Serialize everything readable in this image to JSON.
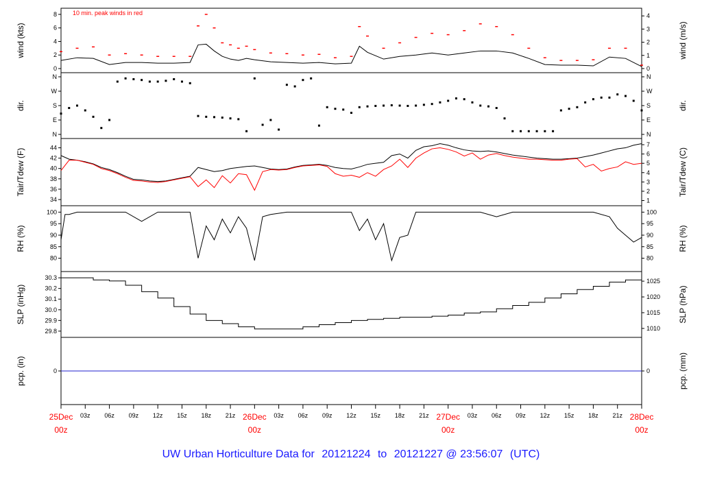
{
  "footer": {
    "prefix": "UW Urban Horticulture Data for",
    "start": "20121224",
    "mid": "to",
    "end": "20121227 @ 23:56:07",
    "tz": "(UTC)"
  },
  "chart_data": {
    "type": "line",
    "time_axis": {
      "unit": "hours since 25Dec 00z",
      "range": [
        0,
        72
      ],
      "major_labels": [
        {
          "t": 0,
          "l1": "25Dec",
          "l2": "00z"
        },
        {
          "t": 24,
          "l1": "26Dec",
          "l2": "00z"
        },
        {
          "t": 48,
          "l1": "27Dec",
          "l2": "00z"
        },
        {
          "t": 72,
          "l1": "28Dec",
          "l2": "00z"
        }
      ],
      "minor_labels": [
        "03z",
        "06z",
        "09z",
        "12z",
        "15z",
        "18z",
        "21z"
      ]
    },
    "panels": [
      {
        "id": "wind",
        "left_label": "wind (kts)",
        "right_label": "wind (m/s)",
        "annotation": "10 min. peak winds in red",
        "left_ticks": [
          "0",
          "2",
          "4",
          "6",
          "8"
        ],
        "left_range": [
          0,
          8.3
        ],
        "right_ticks": [
          "0",
          "1",
          "2",
          "3",
          "4"
        ],
        "series": [
          {
            "role": "mean wind",
            "color": "#000000",
            "x": [
              0,
              2,
              4,
              6,
              8,
              10,
              12,
              14,
              16,
              17,
              18,
              19,
              20,
              21,
              22,
              23,
              24,
              26,
              28,
              30,
              32,
              34,
              36,
              37,
              38,
              40,
              42,
              44,
              46,
              48,
              50,
              52,
              54,
              56,
              58,
              60,
              62,
              64,
              66,
              68,
              70,
              72
            ],
            "y": [
              1.2,
              1.6,
              1.5,
              0.6,
              0.9,
              0.9,
              0.8,
              0.8,
              0.9,
              3.5,
              3.6,
              2.6,
              1.8,
              1.4,
              1.2,
              1.5,
              1.3,
              1.0,
              0.9,
              0.8,
              0.9,
              0.7,
              0.8,
              3.3,
              2.4,
              1.4,
              1.8,
              2.0,
              2.3,
              2.0,
              2.3,
              2.6,
              2.6,
              2.3,
              1.5,
              0.6,
              0.5,
              0.5,
              0.4,
              1.7,
              1.5,
              0.3
            ]
          },
          {
            "role": "10 min peak",
            "color": "#ff0000",
            "x": [
              0,
              2,
              4,
              6,
              8,
              10,
              12,
              14,
              16,
              17,
              18,
              19,
              20,
              21,
              22,
              23,
              24,
              26,
              28,
              30,
              32,
              34,
              36,
              37,
              38,
              40,
              42,
              44,
              46,
              48,
              50,
              52,
              54,
              56,
              58,
              60,
              62,
              64,
              66,
              68,
              70,
              72
            ],
            "y": [
              2.5,
              3.0,
              3.2,
              2.0,
              2.2,
              2.0,
              1.8,
              1.8,
              1.8,
              6.3,
              8.0,
              6.0,
              3.8,
              3.5,
              3.0,
              3.3,
              2.8,
              2.3,
              2.2,
              2.0,
              2.1,
              1.6,
              1.8,
              6.2,
              4.8,
              3.0,
              3.8,
              4.6,
              5.2,
              5.0,
              5.6,
              6.6,
              6.2,
              5.0,
              3.0,
              1.6,
              1.2,
              1.2,
              1.3,
              3.0,
              3.0,
              0.5
            ]
          }
        ]
      },
      {
        "id": "dir",
        "left_label": "dir.",
        "right_label": "dir.",
        "left_ticks": [
          "N",
          "E",
          "S",
          "W",
          "N"
        ],
        "left_range": [
          0,
          360
        ],
        "right_ticks": [
          "N",
          "E",
          "S",
          "W",
          "N"
        ],
        "series": [
          {
            "role": "direction (deg)",
            "color": "#000000",
            "x": [
              0,
              1,
              2,
              3,
              4,
              5,
              6,
              7,
              8,
              9,
              10,
              11,
              12,
              13,
              14,
              15,
              16,
              17,
              18,
              19,
              20,
              21,
              22,
              23,
              24,
              25,
              26,
              27,
              28,
              29,
              30,
              31,
              32,
              33,
              34,
              35,
              36,
              37,
              38,
              39,
              40,
              41,
              42,
              43,
              44,
              45,
              46,
              47,
              48,
              49,
              50,
              51,
              52,
              53,
              54,
              55,
              56,
              57,
              58,
              59,
              60,
              61,
              62,
              63,
              64,
              65,
              66,
              67,
              68,
              69,
              70,
              71,
              72
            ],
            "y": [
              130,
              165,
              180,
              150,
              110,
              40,
              90,
              330,
              350,
              345,
              340,
              330,
              330,
              335,
              345,
              330,
              320,
              115,
              110,
              108,
              105,
              100,
              95,
              20,
              350,
              60,
              90,
              30,
              310,
              300,
              340,
              350,
              55,
              170,
              160,
              155,
              135,
              170,
              175,
              178,
              180,
              182,
              180,
              178,
              180,
              185,
              190,
              200,
              210,
              225,
              220,
              200,
              180,
              175,
              165,
              100,
              20,
              20,
              20,
              20,
              20,
              20,
              150,
              160,
              170,
              200,
              220,
              230,
              230,
              250,
              240,
              210,
              150
            ]
          }
        ]
      },
      {
        "id": "temp",
        "left_label": "Tair/Tdew (F)",
        "right_label": "Tair/Tdew (C)",
        "left_ticks": [
          "34",
          "36",
          "38",
          "40",
          "42",
          "44"
        ],
        "left_range": [
          33.6,
          45.0
        ],
        "right_ticks": [
          "1",
          "2",
          "3",
          "4",
          "5",
          "6",
          "7"
        ],
        "series": [
          {
            "role": "Tair",
            "color": "#000000",
            "x": [
              0,
              1,
              2,
              3,
              4,
              5,
              6,
              7,
              8,
              9,
              10,
              11,
              12,
              13,
              14,
              15,
              16,
              17,
              18,
              19,
              20,
              21,
              22,
              23,
              24,
              25,
              26,
              27,
              28,
              29,
              30,
              31,
              32,
              33,
              34,
              35,
              36,
              37,
              38,
              39,
              40,
              41,
              42,
              43,
              44,
              45,
              46,
              47,
              48,
              49,
              50,
              51,
              52,
              53,
              54,
              55,
              56,
              57,
              58,
              59,
              60,
              61,
              62,
              63,
              64,
              65,
              66,
              67,
              68,
              69,
              70,
              71,
              72
            ],
            "y": [
              42.5,
              41.8,
              41.6,
              41.3,
              40.9,
              40.2,
              39.8,
              39.2,
              38.5,
              37.9,
              37.8,
              37.6,
              37.5,
              37.6,
              37.9,
              38.2,
              38.5,
              40.2,
              39.8,
              39.4,
              39.6,
              40.0,
              40.2,
              40.4,
              40.5,
              40.2,
              39.9,
              39.8,
              39.9,
              40.3,
              40.6,
              40.7,
              40.8,
              40.6,
              40.2,
              40.0,
              39.9,
              40.3,
              40.8,
              41.0,
              41.2,
              42.5,
              42.8,
              42.0,
              43.5,
              44.2,
              44.4,
              44.8,
              44.5,
              44.0,
              43.6,
              43.4,
              43.3,
              43.4,
              43.2,
              42.9,
              42.6,
              42.4,
              42.2,
              42.0,
              41.9,
              41.8,
              41.8,
              41.9,
              42.0,
              42.3,
              42.6,
              43.0,
              43.4,
              43.8,
              44.0,
              44.5,
              44.8
            ]
          },
          {
            "role": "Tdew",
            "color": "#ff0000",
            "x": [
              0,
              1,
              2,
              3,
              4,
              5,
              6,
              7,
              8,
              9,
              10,
              11,
              12,
              13,
              14,
              15,
              16,
              17,
              18,
              19,
              20,
              21,
              22,
              23,
              24,
              25,
              26,
              27,
              28,
              29,
              30,
              31,
              32,
              33,
              34,
              35,
              36,
              37,
              38,
              39,
              40,
              41,
              42,
              43,
              44,
              45,
              46,
              47,
              48,
              49,
              50,
              51,
              52,
              53,
              54,
              55,
              56,
              57,
              58,
              59,
              60,
              61,
              62,
              63,
              64,
              65,
              66,
              67,
              68,
              69,
              70,
              71,
              72
            ],
            "y": [
              39.6,
              41.6,
              41.6,
              41.2,
              40.8,
              40.0,
              39.6,
              39.0,
              38.3,
              37.7,
              37.6,
              37.4,
              37.3,
              37.5,
              37.8,
              38.1,
              38.4,
              36.5,
              37.8,
              36.3,
              38.6,
              37.2,
              39.0,
              38.8,
              35.8,
              39.4,
              39.8,
              39.7,
              39.8,
              40.2,
              40.5,
              40.6,
              40.7,
              40.4,
              39.0,
              38.5,
              38.7,
              38.3,
              39.2,
              38.5,
              39.8,
              40.5,
              41.8,
              40.2,
              42.0,
              43.0,
              43.8,
              44.0,
              43.7,
              43.2,
              42.4,
              43.0,
              41.8,
              42.6,
              42.9,
              42.5,
              42.2,
              42.0,
              41.8,
              41.8,
              41.7,
              41.6,
              41.6,
              41.8,
              41.9,
              40.3,
              40.8,
              39.5,
              40.0,
              40.3,
              41.3,
              40.8,
              41.0
            ]
          }
        ]
      },
      {
        "id": "rh",
        "left_label": "RH (%)",
        "right_label": "RH (%)",
        "left_ticks": [
          "80",
          "85",
          "90",
          "95",
          "100"
        ],
        "left_range": [
          76,
          101
        ],
        "right_ticks": [
          "80",
          "85",
          "90",
          "95",
          "100"
        ],
        "series": [
          {
            "role": "RH",
            "color": "#000000",
            "x": [
              0,
              0.5,
              1,
              2,
              4,
              6,
              8,
              10,
              12,
              14,
              16,
              17,
              18,
              19,
              20,
              21,
              22,
              23,
              24,
              25,
              26,
              28,
              30,
              32,
              34,
              36,
              37,
              38,
              39,
              40,
              41,
              42,
              43,
              44,
              46,
              48,
              50,
              52,
              54,
              56,
              58,
              60,
              62,
              64,
              66,
              68,
              69,
              70,
              71,
              72
            ],
            "y": [
              88,
              99,
              99,
              100,
              100,
              100,
              100,
              96,
              100,
              100,
              100,
              80,
              94,
              88,
              97,
              91,
              98,
              93,
              79,
              98,
              99,
              100,
              100,
              100,
              100,
              100,
              92,
              97,
              88,
              95,
              79,
              89,
              90,
              100,
              100,
              100,
              100,
              100,
              98,
              100,
              100,
              100,
              100,
              100,
              100,
              98,
              93,
              90,
              87,
              89
            ]
          }
        ]
      },
      {
        "id": "slp",
        "left_label": "SLP (inHg)",
        "right_label": "SLP (hPa)",
        "left_ticks": [
          "29.8",
          "29.9",
          "30.0",
          "30.1",
          "30.2",
          "30.3"
        ],
        "left_range": [
          29.78,
          30.32
        ],
        "right_ticks": [
          "1010",
          "1015",
          "1020",
          "1025"
        ],
        "series": [
          {
            "role": "SLP",
            "color": "#000000",
            "x": [
              0,
              2,
              4,
              6,
              8,
              10,
              12,
              14,
              16,
              18,
              20,
              22,
              24,
              26,
              28,
              30,
              32,
              34,
              36,
              38,
              40,
              42,
              44,
              46,
              48,
              50,
              52,
              54,
              56,
              58,
              60,
              62,
              64,
              66,
              68,
              70,
              72
            ],
            "y": [
              30.3,
              30.3,
              30.28,
              30.27,
              30.23,
              30.17,
              30.11,
              30.03,
              29.96,
              29.9,
              29.87,
              29.84,
              29.82,
              29.82,
              29.82,
              29.84,
              29.86,
              29.88,
              29.9,
              29.91,
              29.92,
              29.93,
              29.93,
              29.94,
              29.95,
              29.97,
              29.98,
              30.01,
              30.04,
              30.07,
              30.11,
              30.15,
              30.19,
              30.22,
              30.26,
              30.28,
              30.28
            ]
          }
        ]
      },
      {
        "id": "pcp",
        "left_label": "pcp. (in)",
        "right_label": "pcp. (mm)",
        "left_ticks": [
          "0"
        ],
        "left_range": [
          -1,
          1
        ],
        "right_ticks": [
          "0"
        ],
        "series": [
          {
            "role": "precipitation",
            "color": "#2222cc",
            "x": [
              0,
              72
            ],
            "y": [
              0,
              0
            ]
          }
        ]
      }
    ]
  }
}
